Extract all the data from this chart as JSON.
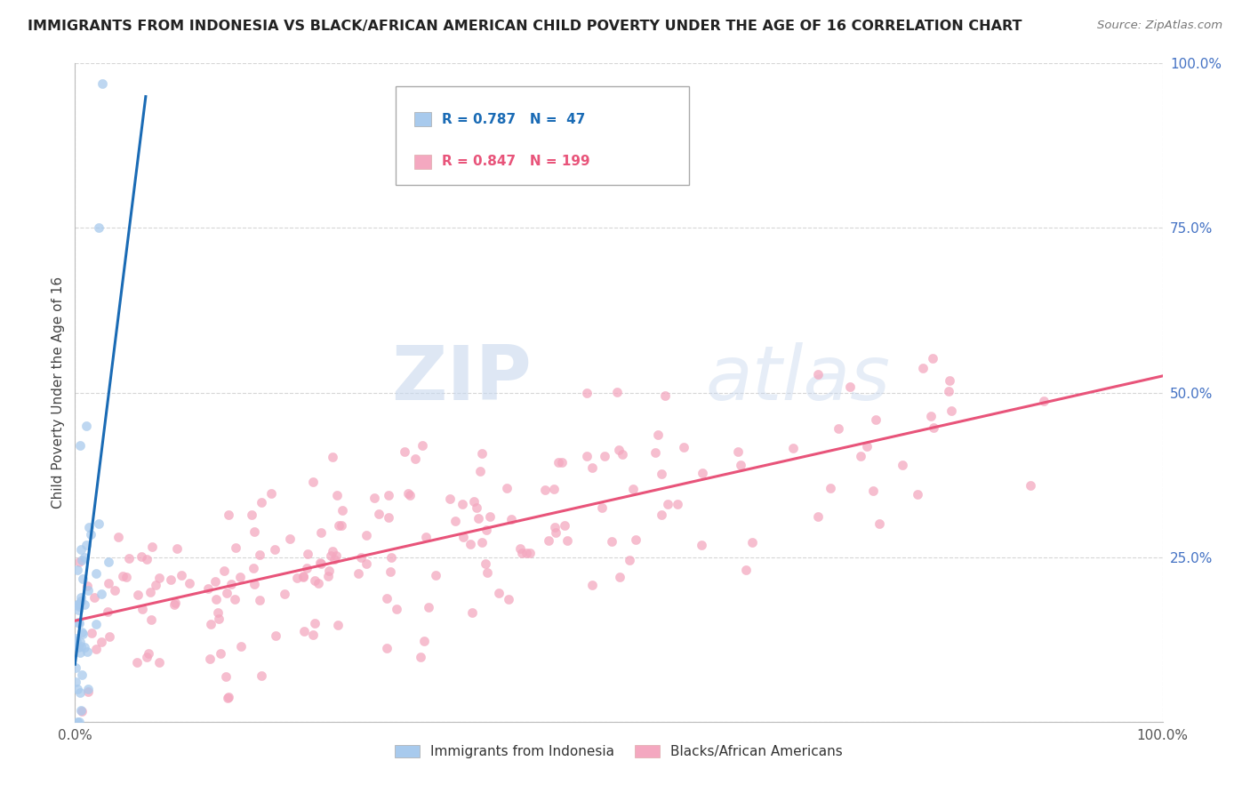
{
  "title": "IMMIGRANTS FROM INDONESIA VS BLACK/AFRICAN AMERICAN CHILD POVERTY UNDER THE AGE OF 16 CORRELATION CHART",
  "source": "Source: ZipAtlas.com",
  "ylabel": "Child Poverty Under the Age of 16",
  "blue_R": 0.787,
  "blue_N": 47,
  "pink_R": 0.847,
  "pink_N": 199,
  "blue_color": "#a8caed",
  "pink_color": "#f4a8c0",
  "blue_line_color": "#1a6bb5",
  "pink_line_color": "#e8547a",
  "legend_blue_label": "Immigrants from Indonesia",
  "legend_pink_label": "Blacks/African Americans",
  "xlim": [
    0.0,
    1.0
  ],
  "ylim": [
    0.0,
    1.0
  ],
  "watermark_zip": "ZIP",
  "watermark_atlas": "atlas",
  "background_color": "#ffffff",
  "grid_color": "#cccccc",
  "ytick_color": "#4472c4"
}
